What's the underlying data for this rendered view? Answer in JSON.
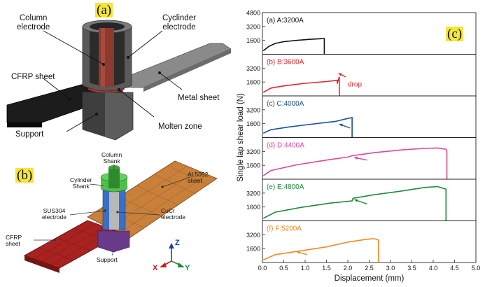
{
  "figure": {
    "panel_a": {
      "tag": "(a)",
      "labels": {
        "column_electrode": "Column\nelectrode",
        "cylinder_electrode": "Cyclinder\nelectrode",
        "cfrp_sheet": "CFRP sheet",
        "metal_sheet": "Metal sheet",
        "support": "Support",
        "molten_zone": "Molten zone"
      }
    },
    "panel_b": {
      "tag": "(b)",
      "labels": {
        "column_shank": "Column\nShank",
        "cylinder_shank": "Cylinder\nShank",
        "al5052_sheet": "AL5052\nsheet",
        "sus304_electrode": "SUS304\nelectrode",
        "cucr_electrode": "CuCr\nelectrode",
        "cfrp_sheet": "CFRP\nsheet",
        "support": "Support"
      },
      "axes": {
        "z": "Z",
        "x": "X",
        "y": "Y"
      }
    },
    "panel_c": {
      "tag": "(c)"
    }
  },
  "colors": {
    "a": "#111111",
    "b": "#e0262b",
    "c": "#1a4fa0",
    "d": "#e0469a",
    "e": "#1e8a3a",
    "f": "#f08a24"
  },
  "chart_data": {
    "type": "line",
    "title": "",
    "xlabel": "Displacement (mm)",
    "ylabel": "Single lap shear load (N)",
    "xlim": [
      0.0,
      5.0
    ],
    "xticks": [
      "0.0",
      "0.5",
      "1.0",
      "1.5",
      "2.0",
      "2.5",
      "3.0",
      "3.5",
      "4.0",
      "4.5",
      "5.0"
    ],
    "ylim": [
      0,
      4800
    ],
    "yticks_top": [
      "4800",
      "3200",
      "1600"
    ],
    "yticks": [
      "3200",
      "1600"
    ],
    "panels": [
      {
        "name": "(a) A:3200A",
        "color": "#111111",
        "x": [
          0.02,
          0.15,
          0.3,
          0.5,
          0.8,
          1.1,
          1.4,
          1.45,
          1.45
        ],
        "y": [
          400,
          900,
          1250,
          1450,
          1600,
          1720,
          1800,
          1800,
          0
        ]
      },
      {
        "name": "(b) B:3600A",
        "color": "#e0262b",
        "annotation": "drop",
        "x": [
          0.02,
          0.2,
          0.5,
          1.0,
          1.5,
          1.75,
          1.75,
          1.8,
          1.8
        ],
        "y": [
          400,
          900,
          1150,
          1450,
          1650,
          1800,
          1400,
          2200,
          0
        ]
      },
      {
        "name": "(c) C:4000A",
        "color": "#1a4fa0",
        "x": [
          0.02,
          0.2,
          0.6,
          1.0,
          1.6,
          1.7,
          2.0,
          2.1,
          2.1
        ],
        "y": [
          500,
          900,
          1200,
          1450,
          1800,
          1850,
          2200,
          2300,
          0
        ]
      },
      {
        "name": "(d) D:4400A",
        "color": "#e0469a",
        "x": [
          0.02,
          0.2,
          0.8,
          1.5,
          2.0,
          2.1,
          2.6,
          3.3,
          3.8,
          4.1,
          4.3,
          4.32,
          4.32
        ],
        "y": [
          400,
          1000,
          1650,
          2200,
          2550,
          2700,
          3050,
          3400,
          3550,
          3600,
          3450,
          3200,
          0
        ]
      },
      {
        "name": "(e) E:4800A",
        "color": "#1e8a3a",
        "x": [
          0.02,
          0.3,
          0.9,
          1.6,
          2.1,
          2.12,
          2.6,
          3.2,
          3.8,
          4.1,
          4.3,
          4.3
        ],
        "y": [
          300,
          1000,
          1550,
          2050,
          2300,
          2600,
          3000,
          3400,
          3850,
          3950,
          3650,
          0
        ]
      },
      {
        "name": "(f) F:5200A",
        "color": "#f08a24",
        "x": [
          0.02,
          0.3,
          0.9,
          1.5,
          2.0,
          2.4,
          2.6,
          2.7,
          2.72,
          2.72
        ],
        "y": [
          300,
          900,
          1350,
          1800,
          2350,
          2650,
          2750,
          2650,
          2500,
          0
        ]
      }
    ]
  }
}
